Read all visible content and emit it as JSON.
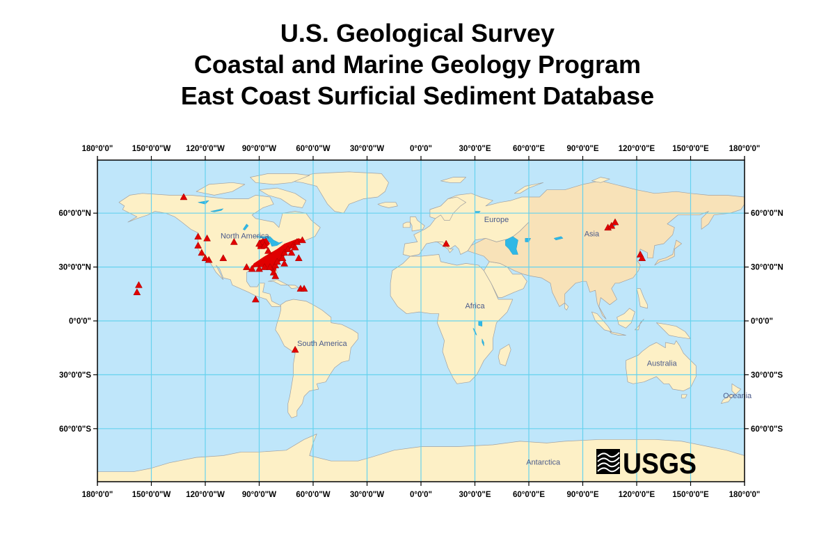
{
  "title": {
    "line1": "U.S. Geological Survey",
    "line2": "Coastal and Marine Geology Program",
    "line3": "East Coast Surficial Sediment Database"
  },
  "colors": {
    "ocean": "#bfe6fa",
    "land": "#fdf0c6",
    "asia_land": "#f8e2b8",
    "coast": "#a0a0a0",
    "graticule": "#66d2ee",
    "lakes": "#2fb8e6",
    "sample_marker": "#e00000"
  },
  "axes": {
    "top_labels": [
      "180°0'0\"",
      "150°0'0\"W",
      "120°0'0\"W",
      "90°0'0\"W",
      "60°0'0\"W",
      "30°0'0\"W",
      "0°0'0\"",
      "30°0'0\"E",
      "60°0'0\"E",
      "90°0'0\"E",
      "120°0'0\"E",
      "150°0'0\"E",
      "180°0'0\""
    ],
    "bottom_labels": [
      "180°0'0\"",
      "150°0'0\"W",
      "120°0'0\"W",
      "90°0'0\"W",
      "60°0'0\"W",
      "30°0'0\"W",
      "0°0'0\"",
      "30°0'0\"E",
      "60°0'0\"E",
      "90°0'0\"E",
      "120°0'0\"E",
      "150°0'0\"E",
      "180°0'0\""
    ],
    "left_labels": [
      "60°0'0\"N",
      "30°0'0\"N",
      "0°0'0\"",
      "30°0'0\"S",
      "60°0'0\"S"
    ],
    "right_labels": [
      "60°0'0\"N",
      "30°0'0\"N",
      "0°0'0\"",
      "30°0'0\"S",
      "60°0'0\"S"
    ],
    "lat_values": [
      60,
      30,
      0,
      -30,
      -60
    ]
  },
  "regions": [
    {
      "name": "North America",
      "lon": -98,
      "lat": 46
    },
    {
      "name": "Europe",
      "lon": 42,
      "lat": 55
    },
    {
      "name": "Asia",
      "lon": 95,
      "lat": 47
    },
    {
      "name": "Africa",
      "lon": 30,
      "lat": 7
    },
    {
      "name": "South America",
      "lon": -55,
      "lat": -14
    },
    {
      "name": "Australia",
      "lon": 134,
      "lat": -25
    },
    {
      "name": "Oceania",
      "lon": 176,
      "lat": -43
    },
    {
      "name": "Antarctica",
      "lon": 68,
      "lat": -80
    }
  ],
  "sample_sites": [
    {
      "lon": -132,
      "lat": 69
    },
    {
      "lon": -124,
      "lat": 47
    },
    {
      "lon": -119,
      "lat": 46
    },
    {
      "lon": -124,
      "lat": 42
    },
    {
      "lon": -122,
      "lat": 38
    },
    {
      "lon": -120,
      "lat": 35
    },
    {
      "lon": -118,
      "lat": 34
    },
    {
      "lon": -110,
      "lat": 35
    },
    {
      "lon": -104,
      "lat": 44
    },
    {
      "lon": -88,
      "lat": 44
    },
    {
      "lon": -90,
      "lat": 43
    },
    {
      "lon": -87,
      "lat": 42
    },
    {
      "lon": -85,
      "lat": 39
    },
    {
      "lon": -97,
      "lat": 30
    },
    {
      "lon": -94,
      "lat": 29
    },
    {
      "lon": -90,
      "lat": 29
    },
    {
      "lon": -87,
      "lat": 30
    },
    {
      "lon": -84,
      "lat": 30
    },
    {
      "lon": -82,
      "lat": 27
    },
    {
      "lon": -81,
      "lat": 25
    },
    {
      "lon": -81,
      "lat": 31
    },
    {
      "lon": -80,
      "lat": 33
    },
    {
      "lon": -77,
      "lat": 35
    },
    {
      "lon": -76,
      "lat": 38
    },
    {
      "lon": -74,
      "lat": 40
    },
    {
      "lon": -71,
      "lat": 42
    },
    {
      "lon": -69,
      "lat": 44
    },
    {
      "lon": -66,
      "lat": 45
    },
    {
      "lon": -70,
      "lat": 41
    },
    {
      "lon": -72,
      "lat": 38
    },
    {
      "lon": -76,
      "lat": 32
    },
    {
      "lon": -68,
      "lat": 35
    },
    {
      "lon": -67,
      "lat": 18
    },
    {
      "lon": -65,
      "lat": 18
    },
    {
      "lon": -92,
      "lat": 12
    },
    {
      "lon": -157,
      "lat": 20
    },
    {
      "lon": -158,
      "lat": 16
    },
    {
      "lon": -70,
      "lat": -16
    },
    {
      "lon": 14,
      "lat": 43
    },
    {
      "lon": 104,
      "lat": 52
    },
    {
      "lon": 106,
      "lat": 53
    },
    {
      "lon": 108,
      "lat": 55
    },
    {
      "lon": 122,
      "lat": 37
    },
    {
      "lon": 123,
      "lat": 35
    }
  ],
  "sample_fill": {
    "east_us": [
      [
        -80,
        25
      ],
      [
        -86,
        30
      ],
      [
        -92,
        30
      ],
      [
        -95,
        29
      ],
      [
        -93,
        32
      ],
      [
        -87,
        36
      ],
      [
        -80,
        40
      ],
      [
        -76,
        43
      ],
      [
        -68,
        46
      ],
      [
        -66,
        45
      ],
      [
        -70,
        42
      ],
      [
        -74,
        39
      ],
      [
        -77,
        35
      ],
      [
        -80,
        31
      ],
      [
        -81,
        27
      ]
    ],
    "great_lakes": [
      [
        -91,
        40
      ],
      [
        -90,
        45
      ],
      [
        -86,
        46
      ],
      [
        -84,
        43
      ],
      [
        -87,
        40
      ]
    ]
  },
  "logo": {
    "text": "USGS"
  }
}
